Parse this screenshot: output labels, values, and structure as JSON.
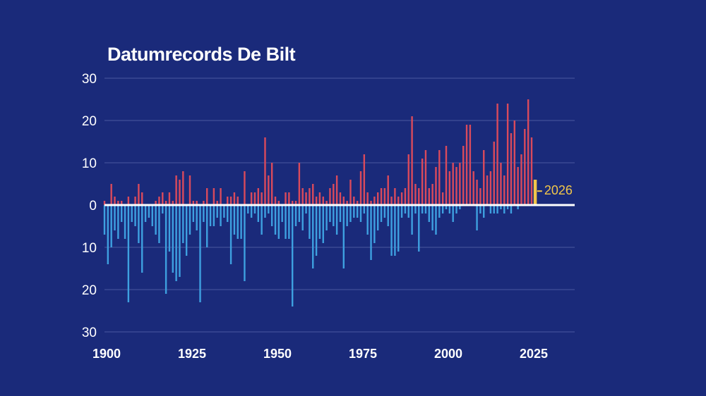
{
  "chart_data": {
    "type": "bar",
    "title": "Datumrecords De Bilt",
    "y_ticks": [
      "30",
      "20",
      "10",
      "0",
      "10",
      "20",
      "30"
    ],
    "x_ticks": [
      "1900",
      "1925",
      "1950",
      "1975",
      "2000",
      "2025"
    ],
    "ylim": [
      -30,
      30
    ],
    "xlim": [
      1900,
      2037
    ],
    "grid": true,
    "colors": {
      "background": "#1a2a7a",
      "warm": "#d94a5c",
      "cold": "#3ea0e0",
      "highlight": "#f2c64a",
      "grid": "#4a58a0"
    },
    "highlight": {
      "year": 2026,
      "value": 6,
      "label": "2026"
    },
    "series": [
      {
        "values": [
          [
            1900,
            1
          ],
          [
            1901,
            0
          ],
          [
            1902,
            5
          ],
          [
            1903,
            2
          ],
          [
            1904,
            1
          ],
          [
            1905,
            1
          ],
          [
            1906,
            0
          ],
          [
            1907,
            2
          ],
          [
            1908,
            0
          ],
          [
            1909,
            2
          ],
          [
            1910,
            5
          ],
          [
            1911,
            3
          ],
          [
            1912,
            0
          ],
          [
            1913,
            0
          ],
          [
            1914,
            0
          ],
          [
            1915,
            1
          ],
          [
            1916,
            2
          ],
          [
            1917,
            3
          ],
          [
            1918,
            1
          ],
          [
            1919,
            3
          ],
          [
            1920,
            1
          ],
          [
            1921,
            7
          ],
          [
            1922,
            6
          ],
          [
            1923,
            8
          ],
          [
            1924,
            0
          ],
          [
            1925,
            7
          ],
          [
            1926,
            1
          ],
          [
            1927,
            1
          ],
          [
            1928,
            0
          ],
          [
            1929,
            1
          ],
          [
            1930,
            4
          ],
          [
            1931,
            0
          ],
          [
            1932,
            4
          ],
          [
            1933,
            1
          ],
          [
            1934,
            4
          ],
          [
            1935,
            0
          ],
          [
            1936,
            2
          ],
          [
            1937,
            2
          ],
          [
            1938,
            3
          ],
          [
            1939,
            2
          ],
          [
            1940,
            0
          ],
          [
            1941,
            8
          ],
          [
            1942,
            0
          ],
          [
            1943,
            3
          ],
          [
            1944,
            3
          ],
          [
            1945,
            4
          ],
          [
            1946,
            3
          ],
          [
            1947,
            16
          ],
          [
            1948,
            7
          ],
          [
            1949,
            10
          ],
          [
            1950,
            2
          ],
          [
            1951,
            1
          ],
          [
            1952,
            0
          ],
          [
            1953,
            3
          ],
          [
            1954,
            3
          ],
          [
            1955,
            1
          ],
          [
            1956,
            1
          ],
          [
            1957,
            10
          ],
          [
            1958,
            4
          ],
          [
            1959,
            3
          ],
          [
            1960,
            4
          ],
          [
            1961,
            5
          ],
          [
            1962,
            2
          ],
          [
            1963,
            3
          ],
          [
            1964,
            2
          ],
          [
            1965,
            1
          ],
          [
            1966,
            4
          ],
          [
            1967,
            5
          ],
          [
            1968,
            7
          ],
          [
            1969,
            3
          ],
          [
            1970,
            2
          ],
          [
            1971,
            1
          ],
          [
            1972,
            6
          ],
          [
            1973,
            2
          ],
          [
            1974,
            1
          ],
          [
            1975,
            8
          ],
          [
            1976,
            12
          ],
          [
            1977,
            3
          ],
          [
            1978,
            1
          ],
          [
            1979,
            2
          ],
          [
            1980,
            3
          ],
          [
            1981,
            4
          ],
          [
            1982,
            4
          ],
          [
            1983,
            7
          ],
          [
            1984,
            2
          ],
          [
            1985,
            4
          ],
          [
            1986,
            2
          ],
          [
            1987,
            3
          ],
          [
            1988,
            4
          ],
          [
            1989,
            12
          ],
          [
            1990,
            21
          ],
          [
            1991,
            5
          ],
          [
            1992,
            4
          ],
          [
            1993,
            11
          ],
          [
            1994,
            13
          ],
          [
            1995,
            4
          ],
          [
            1996,
            5
          ],
          [
            1997,
            9
          ],
          [
            1998,
            13
          ],
          [
            1999,
            3
          ],
          [
            2000,
            14
          ],
          [
            2001,
            8
          ],
          [
            2002,
            10
          ],
          [
            2003,
            9
          ],
          [
            2004,
            10
          ],
          [
            2005,
            14
          ],
          [
            2006,
            19
          ],
          [
            2007,
            19
          ],
          [
            2008,
            8
          ],
          [
            2009,
            6
          ],
          [
            2010,
            4
          ],
          [
            2011,
            13
          ],
          [
            2012,
            7
          ],
          [
            2013,
            8
          ],
          [
            2014,
            15
          ],
          [
            2015,
            24
          ],
          [
            2016,
            10
          ],
          [
            2017,
            7
          ],
          [
            2018,
            24
          ],
          [
            2019,
            17
          ],
          [
            2020,
            20
          ],
          [
            2021,
            9
          ],
          [
            2022,
            12
          ],
          [
            2023,
            18
          ],
          [
            2024,
            25
          ],
          [
            2025,
            16
          ]
        ]
      },
      {
        "values": [
          [
            1900,
            -7
          ],
          [
            1901,
            -14
          ],
          [
            1902,
            -10
          ],
          [
            1903,
            -6
          ],
          [
            1904,
            -8
          ],
          [
            1905,
            -4
          ],
          [
            1906,
            -8
          ],
          [
            1907,
            -23
          ],
          [
            1908,
            -4
          ],
          [
            1909,
            -5
          ],
          [
            1910,
            -9
          ],
          [
            1911,
            -16
          ],
          [
            1912,
            -4
          ],
          [
            1913,
            -3
          ],
          [
            1914,
            -5
          ],
          [
            1915,
            -7
          ],
          [
            1916,
            -9
          ],
          [
            1917,
            -2
          ],
          [
            1918,
            -21
          ],
          [
            1919,
            -11
          ],
          [
            1920,
            -16
          ],
          [
            1921,
            -18
          ],
          [
            1922,
            -17
          ],
          [
            1923,
            -9
          ],
          [
            1924,
            -12
          ],
          [
            1925,
            -7
          ],
          [
            1926,
            -4
          ],
          [
            1927,
            -6
          ],
          [
            1928,
            -23
          ],
          [
            1929,
            -4
          ],
          [
            1930,
            -10
          ],
          [
            1931,
            -5
          ],
          [
            1932,
            -5
          ],
          [
            1933,
            -3
          ],
          [
            1934,
            -5
          ],
          [
            1935,
            -3
          ],
          [
            1936,
            -4
          ],
          [
            1937,
            -14
          ],
          [
            1938,
            -7
          ],
          [
            1939,
            -8
          ],
          [
            1940,
            -8
          ],
          [
            1941,
            -18
          ],
          [
            1942,
            -2
          ],
          [
            1943,
            -3
          ],
          [
            1944,
            -2
          ],
          [
            1945,
            -4
          ],
          [
            1946,
            -7
          ],
          [
            1947,
            -3
          ],
          [
            1948,
            -2
          ],
          [
            1949,
            -5
          ],
          [
            1950,
            -7
          ],
          [
            1951,
            -8
          ],
          [
            1952,
            -4
          ],
          [
            1953,
            -8
          ],
          [
            1954,
            -8
          ],
          [
            1955,
            -24
          ],
          [
            1956,
            -5
          ],
          [
            1957,
            -4
          ],
          [
            1958,
            -6
          ],
          [
            1959,
            -2
          ],
          [
            1960,
            -8
          ],
          [
            1961,
            -15
          ],
          [
            1962,
            -12
          ],
          [
            1963,
            -8
          ],
          [
            1964,
            -9
          ],
          [
            1965,
            -6
          ],
          [
            1966,
            -4
          ],
          [
            1967,
            -5
          ],
          [
            1968,
            -7
          ],
          [
            1969,
            -4
          ],
          [
            1970,
            -15
          ],
          [
            1971,
            -5
          ],
          [
            1972,
            -4
          ],
          [
            1973,
            -3
          ],
          [
            1974,
            -3
          ],
          [
            1975,
            -4
          ],
          [
            1976,
            -2
          ],
          [
            1977,
            -7
          ],
          [
            1978,
            -13
          ],
          [
            1979,
            -9
          ],
          [
            1980,
            -6
          ],
          [
            1981,
            -4
          ],
          [
            1982,
            -3
          ],
          [
            1983,
            -5
          ],
          [
            1984,
            -12
          ],
          [
            1985,
            -12
          ],
          [
            1986,
            -11
          ],
          [
            1987,
            -3
          ],
          [
            1988,
            -2
          ],
          [
            1989,
            -3
          ],
          [
            1990,
            -7
          ],
          [
            1991,
            -2
          ],
          [
            1992,
            -11
          ],
          [
            1993,
            -2
          ],
          [
            1994,
            -2
          ],
          [
            1995,
            -4
          ],
          [
            1996,
            -6
          ],
          [
            1997,
            -7
          ],
          [
            1998,
            -3
          ],
          [
            1999,
            -2
          ],
          [
            2000,
            -1
          ],
          [
            2001,
            -2
          ],
          [
            2002,
            -4
          ],
          [
            2003,
            -2
          ],
          [
            2004,
            -1
          ],
          [
            2005,
            0
          ],
          [
            2006,
            0
          ],
          [
            2007,
            0
          ],
          [
            2008,
            0
          ],
          [
            2009,
            -6
          ],
          [
            2010,
            -2
          ],
          [
            2011,
            -3
          ],
          [
            2012,
            0
          ],
          [
            2013,
            -2
          ],
          [
            2014,
            -2
          ],
          [
            2015,
            -2
          ],
          [
            2016,
            -1
          ],
          [
            2017,
            -2
          ],
          [
            2018,
            -1
          ],
          [
            2019,
            -2
          ],
          [
            2020,
            0
          ],
          [
            2021,
            -1
          ],
          [
            2022,
            0
          ],
          [
            2023,
            0
          ],
          [
            2024,
            0
          ],
          [
            2025,
            0
          ]
        ]
      }
    ]
  }
}
